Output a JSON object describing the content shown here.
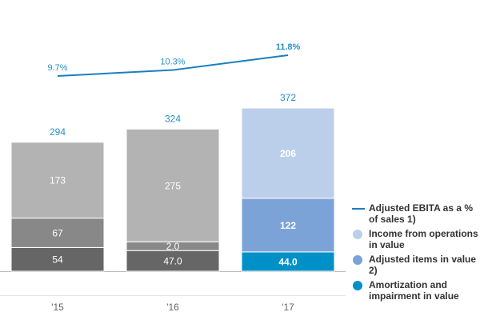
{
  "chart_data": {
    "type": "bar",
    "stacked": true,
    "categories": [
      "'15",
      "'16",
      "'17"
    ],
    "series": [
      {
        "name": "Amortization and impairment in value",
        "values": [
          54,
          47.0,
          44.0
        ],
        "labels": [
          "54",
          "47.0",
          "44.0"
        ],
        "colors": [
          "#666666",
          "#666666",
          "#0090c8"
        ]
      },
      {
        "name": "Adjusted items in value 2)",
        "values": [
          67,
          2.0,
          122
        ],
        "labels": [
          "67",
          "2.0",
          "122"
        ],
        "colors": [
          "#888888",
          "#888888",
          "#7ba3d8"
        ]
      },
      {
        "name": "Income from operations in value",
        "values": [
          173,
          275,
          206
        ],
        "labels": [
          "173",
          "275",
          "206"
        ],
        "colors": [
          "#b3b3b3",
          "#b3b3b3",
          "#bccfea"
        ]
      }
    ],
    "totals": [
      294,
      324,
      372
    ],
    "line": {
      "name": "Adjusted EBITA as a % of sales 1)",
      "values": [
        9.7,
        10.3,
        11.8
      ],
      "labels": [
        "9.7%",
        "10.3%",
        "11.8%"
      ],
      "color": "#1a7fbf"
    },
    "legend": [
      {
        "label": "Adjusted EBITA as a % of sales 1)",
        "kind": "line",
        "color": "#1a7fbf"
      },
      {
        "label": "Income from operations in value",
        "kind": "dot",
        "color": "#bccfea"
      },
      {
        "label": "Adjusted items in value 2)",
        "kind": "dot",
        "color": "#7ba3d8"
      },
      {
        "label": "Amortization and impairment in value",
        "kind": "dot",
        "color": "#0090c8"
      }
    ],
    "legend_position": "right",
    "grid": false,
    "title": "",
    "xlabel": "",
    "ylabel": ""
  }
}
